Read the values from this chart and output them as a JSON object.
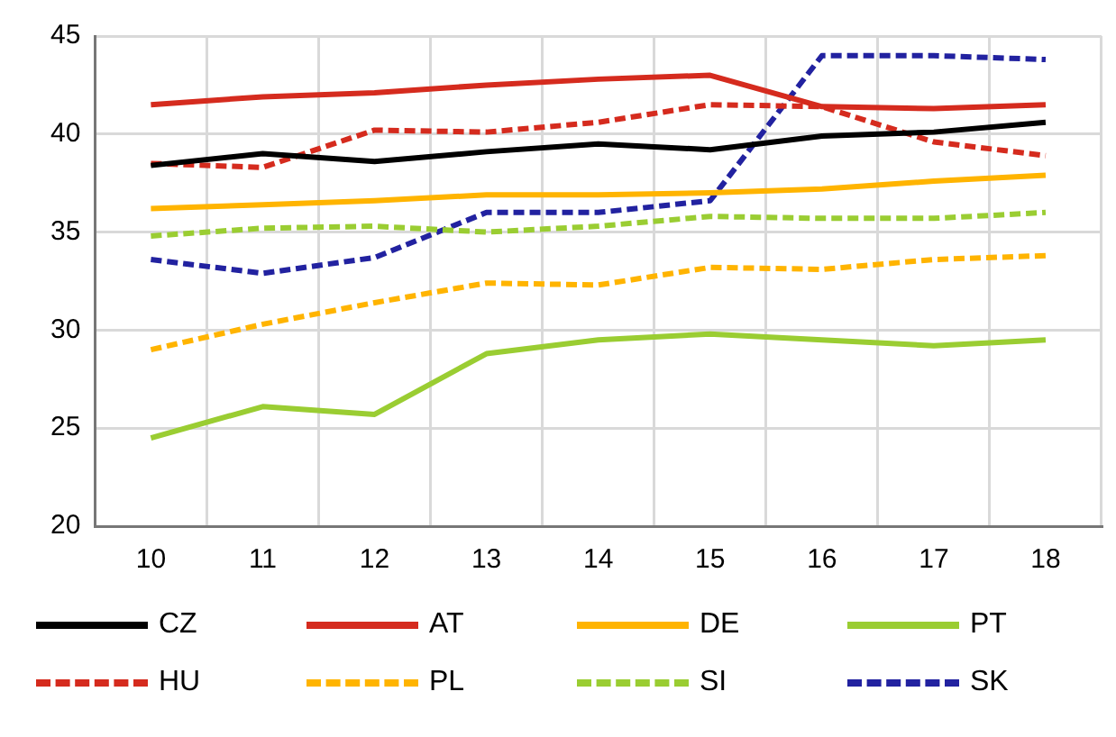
{
  "chart_data": {
    "type": "line",
    "categories": [
      "10",
      "11",
      "12",
      "13",
      "14",
      "15",
      "16",
      "17",
      "18"
    ],
    "ylim": [
      20,
      45
    ],
    "yticks": [
      20,
      25,
      30,
      35,
      40,
      45
    ],
    "grid": true,
    "legend": "bottom",
    "marker": "none",
    "series": [
      {
        "name": "CZ",
        "color": "#000000",
        "line_style": "solid",
        "values": [
          38.4,
          39.0,
          38.6,
          39.1,
          39.5,
          39.2,
          39.9,
          40.1,
          40.6
        ]
      },
      {
        "name": "AT",
        "color": "#d52b1e",
        "line_style": "solid",
        "values": [
          41.5,
          41.9,
          42.1,
          42.5,
          42.8,
          43.0,
          41.4,
          41.3,
          41.5
        ]
      },
      {
        "name": "DE",
        "color": "#ffb400",
        "line_style": "solid",
        "values": [
          36.2,
          36.4,
          36.6,
          36.9,
          36.9,
          37.0,
          37.2,
          37.6,
          37.9
        ]
      },
      {
        "name": "PT",
        "color": "#9acd32",
        "line_style": "solid",
        "values": [
          24.5,
          26.1,
          25.7,
          28.8,
          29.5,
          29.8,
          29.5,
          29.2,
          29.5
        ]
      },
      {
        "name": "HU",
        "color": "#d52b1e",
        "line_style": "dashed",
        "values": [
          38.5,
          38.3,
          40.2,
          40.1,
          40.6,
          41.5,
          41.4,
          39.6,
          38.9
        ]
      },
      {
        "name": "PL",
        "color": "#ffb400",
        "line_style": "dashed",
        "values": [
          29.0,
          30.3,
          31.4,
          32.4,
          32.3,
          33.2,
          33.1,
          33.6,
          33.8
        ]
      },
      {
        "name": "SI",
        "color": "#9acd32",
        "line_style": "dashed",
        "values": [
          34.8,
          35.2,
          35.3,
          35.0,
          35.3,
          35.8,
          35.7,
          35.7,
          36.0
        ]
      },
      {
        "name": "SK",
        "color": "#2222a0",
        "line_style": "dashed",
        "values": [
          33.6,
          32.9,
          33.7,
          36.0,
          36.0,
          36.6,
          44.0,
          44.0,
          43.8
        ]
      }
    ]
  }
}
